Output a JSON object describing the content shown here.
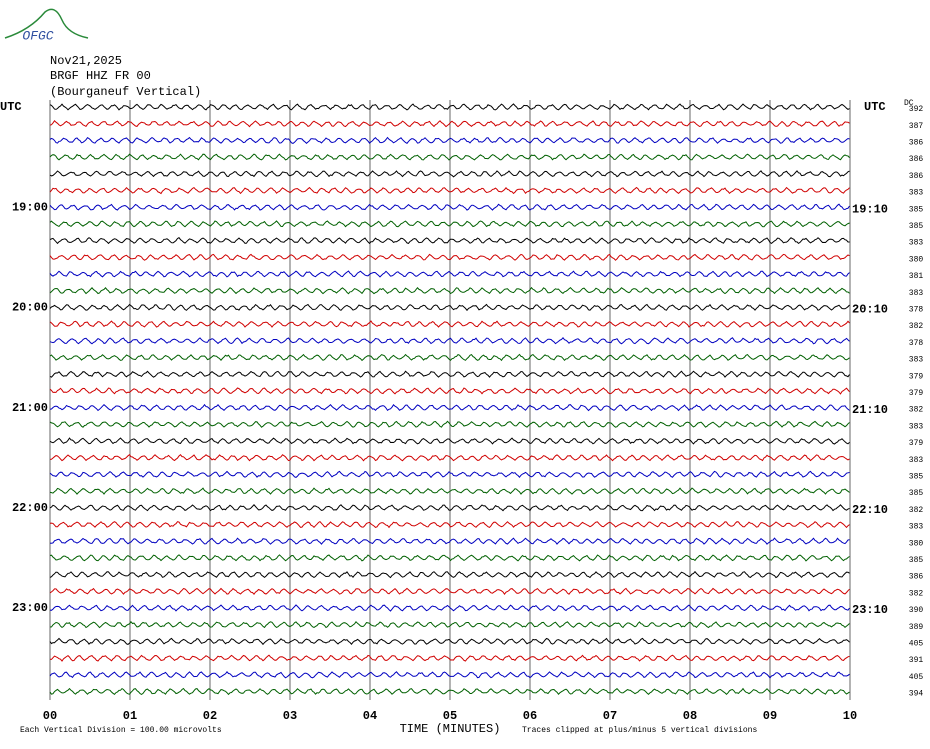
{
  "chart_data": {
    "type": "helicorder",
    "logo": "OFGC",
    "title": [
      "Nov21,2025",
      "BRGF HHZ FR 00",
      "(Bourganeuf Vertical)"
    ],
    "left_timezone": "UTC",
    "right_timezone": "UTC",
    "dc_header": "DC",
    "colors": [
      "#000000",
      "#d00000",
      "#0000c0",
      "#006000"
    ],
    "rows": [
      {
        "left": null,
        "right": null,
        "dc": 392
      },
      {
        "left": null,
        "right": null,
        "dc": 387
      },
      {
        "left": null,
        "right": null,
        "dc": 386
      },
      {
        "left": null,
        "right": null,
        "dc": 386
      },
      {
        "left": null,
        "right": null,
        "dc": 386
      },
      {
        "left": null,
        "right": null,
        "dc": 383
      },
      {
        "left": "19:00",
        "right": "19:10",
        "dc": 385
      },
      {
        "left": null,
        "right": null,
        "dc": 385
      },
      {
        "left": null,
        "right": null,
        "dc": 383
      },
      {
        "left": null,
        "right": null,
        "dc": 380
      },
      {
        "left": null,
        "right": null,
        "dc": 381
      },
      {
        "left": null,
        "right": null,
        "dc": 383
      },
      {
        "left": "20:00",
        "right": "20:10",
        "dc": 378
      },
      {
        "left": null,
        "right": null,
        "dc": 382
      },
      {
        "left": null,
        "right": null,
        "dc": 378
      },
      {
        "left": null,
        "right": null,
        "dc": 383
      },
      {
        "left": null,
        "right": null,
        "dc": 379
      },
      {
        "left": null,
        "right": null,
        "dc": 379
      },
      {
        "left": "21:00",
        "right": "21:10",
        "dc": 382
      },
      {
        "left": null,
        "right": null,
        "dc": 383
      },
      {
        "left": null,
        "right": null,
        "dc": 379
      },
      {
        "left": null,
        "right": null,
        "dc": 383
      },
      {
        "left": null,
        "right": null,
        "dc": 385
      },
      {
        "left": null,
        "right": null,
        "dc": 385
      },
      {
        "left": "22:00",
        "right": "22:10",
        "dc": 382
      },
      {
        "left": null,
        "right": null,
        "dc": 383
      },
      {
        "left": null,
        "right": null,
        "dc": 380
      },
      {
        "left": null,
        "right": null,
        "dc": 385
      },
      {
        "left": null,
        "right": null,
        "dc": 386
      },
      {
        "left": null,
        "right": null,
        "dc": 382
      },
      {
        "left": "23:00",
        "right": "23:10",
        "dc": 390
      },
      {
        "left": null,
        "right": null,
        "dc": 389
      },
      {
        "left": null,
        "right": null,
        "dc": 405
      },
      {
        "left": null,
        "right": null,
        "dc": 391
      },
      {
        "left": null,
        "right": null,
        "dc": 405
      },
      {
        "left": null,
        "right": null,
        "dc": 394
      }
    ],
    "xlim": [
      0,
      10
    ],
    "xticks": [
      {
        "value": 0,
        "label": "00"
      },
      {
        "value": 1,
        "label": "01"
      },
      {
        "value": 2,
        "label": "02"
      },
      {
        "value": 3,
        "label": "03"
      },
      {
        "value": 4,
        "label": "04"
      },
      {
        "value": 5,
        "label": "05"
      },
      {
        "value": 6,
        "label": "06"
      },
      {
        "value": 7,
        "label": "07"
      },
      {
        "value": 8,
        "label": "08"
      },
      {
        "value": 9,
        "label": "09"
      },
      {
        "value": 10,
        "label": "10"
      }
    ],
    "xlabel": "TIME (MINUTES)",
    "footnote_left": "Each Vertical Division =  100.00 microvolts",
    "footnote_right": "Traces clipped at plus/minus 5 vertical divisions"
  }
}
